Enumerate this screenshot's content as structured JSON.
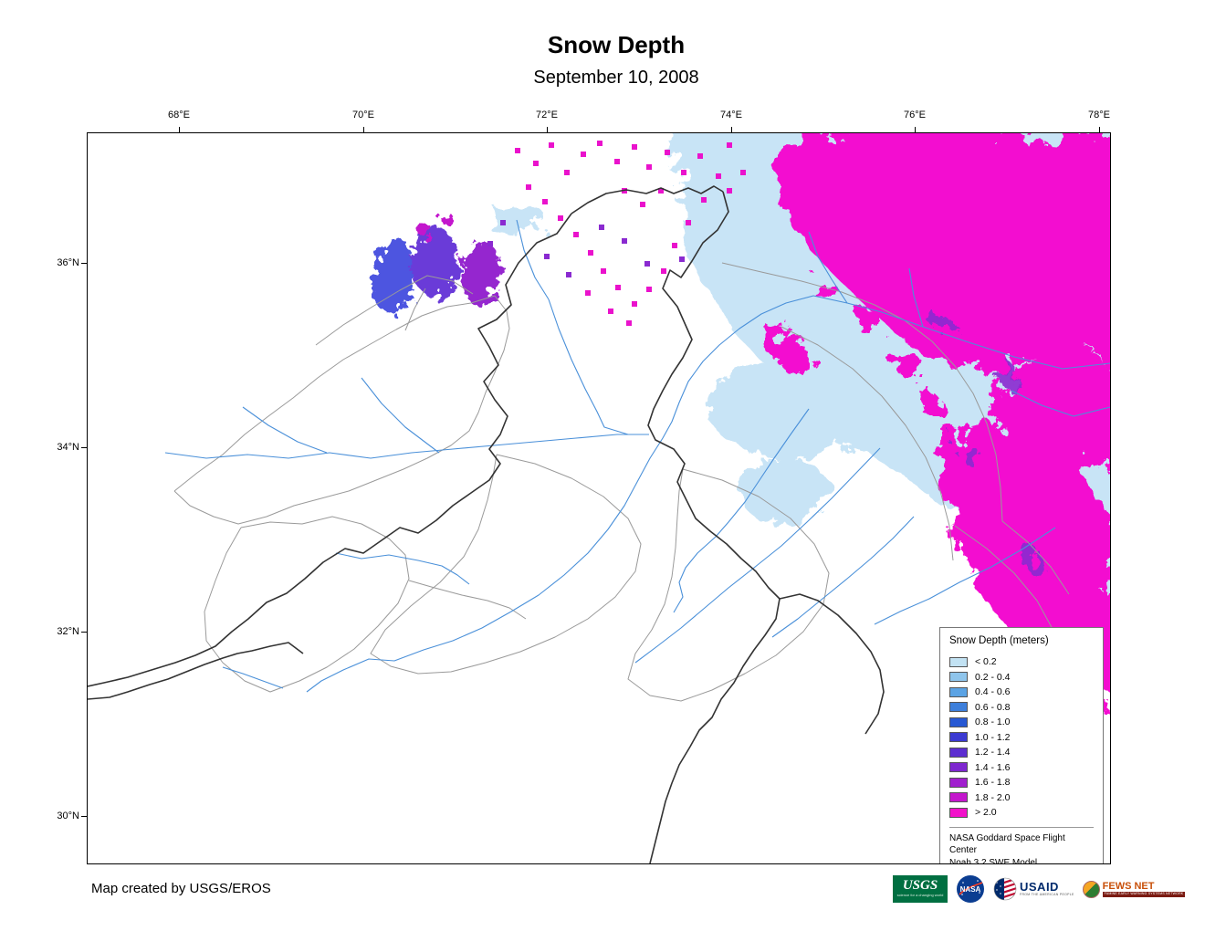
{
  "title": "Snow Depth",
  "subtitle": "September 10, 2008",
  "map": {
    "x_ticks": [
      "68°E",
      "70°E",
      "72°E",
      "74°E",
      "76°E",
      "78°E"
    ],
    "y_ticks": [
      "36°N",
      "34°N",
      "32°N",
      "30°N"
    ]
  },
  "legend": {
    "title": "Snow Depth (meters)",
    "entries": [
      {
        "label": "< 0.2",
        "color": "#c2e2f3"
      },
      {
        "label": "0.2 - 0.4",
        "color": "#8fc5ec"
      },
      {
        "label": "0.4 - 0.6",
        "color": "#5ba3e4"
      },
      {
        "label": "0.6 - 0.8",
        "color": "#3d7fdb"
      },
      {
        "label": "0.8 - 1.0",
        "color": "#2758d3"
      },
      {
        "label": "1.0 - 1.2",
        "color": "#3c3ad2"
      },
      {
        "label": "1.2 - 1.4",
        "color": "#5c2ed0"
      },
      {
        "label": "1.4 - 1.6",
        "color": "#7e27cf"
      },
      {
        "label": "1.6 - 1.8",
        "color": "#a01fce"
      },
      {
        "label": "1.8 - 2.0",
        "color": "#c417cd"
      },
      {
        "label": "> 2.0",
        "color": "#f211ca"
      }
    ],
    "note_line1": "NASA Goddard Space Flight Center",
    "note_line2": "Noah 3.2 SWE Model."
  },
  "footer": {
    "credit": "Map created by USGS/EROS"
  },
  "logos": {
    "usgs": {
      "name": "USGS",
      "tagline": "science for a changing world"
    },
    "nasa": {
      "name": "NASA"
    },
    "usaid": {
      "name": "USAID",
      "tagline": "FROM THE AMERICAN PEOPLE"
    },
    "fewsnet": {
      "name": "FEWS NET",
      "tagline": "FAMINE EARLY WARNING SYSTEMS NETWORK"
    }
  }
}
